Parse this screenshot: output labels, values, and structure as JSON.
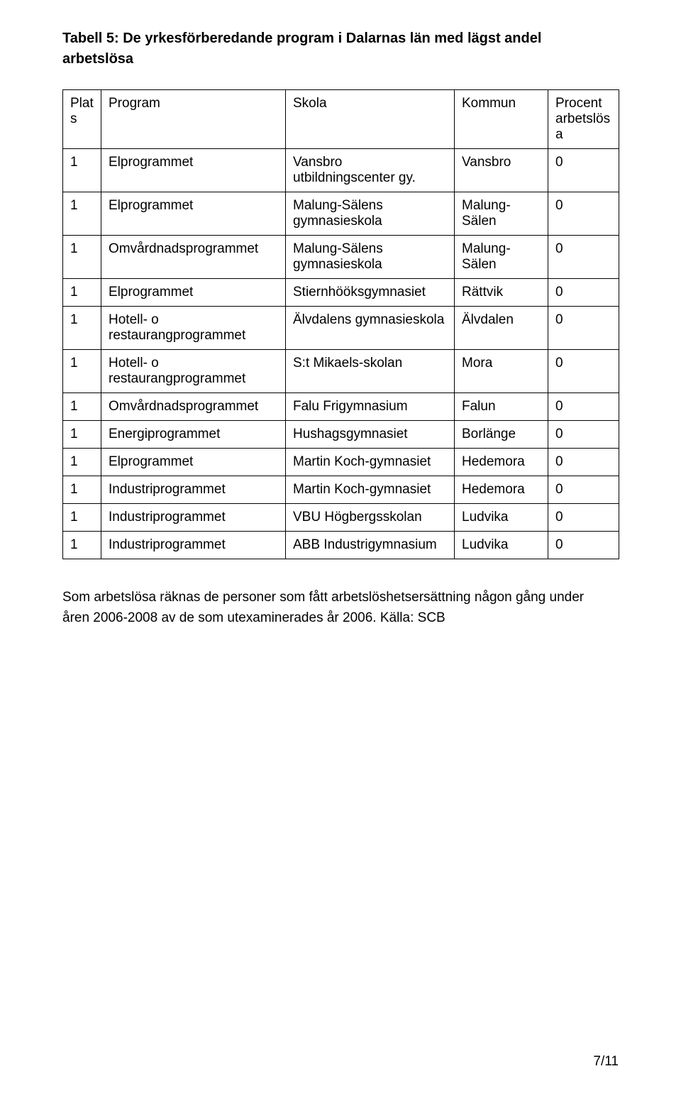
{
  "title_line1": "Tabell 5: De yrkesförberedande program i Dalarnas län med lägst andel",
  "title_line2": "arbetslösa",
  "columns": {
    "plats": "Plats",
    "program": "Program",
    "skola": "Skola",
    "kommun": "Kommun",
    "procent": "Procent arbetslösa"
  },
  "rows": [
    {
      "plats": "1",
      "program": "Elprogrammet",
      "skola": "Vansbro utbildningscenter gy.",
      "kommun": "Vansbro",
      "procent": "0"
    },
    {
      "plats": "1",
      "program": "Elprogrammet",
      "skola": "Malung-Sälens gymnasieskola",
      "kommun": "Malung-Sälen",
      "procent": "0"
    },
    {
      "plats": "1",
      "program": "Omvårdnadsprogrammet",
      "skola": "Malung-Sälens gymnasieskola",
      "kommun": "Malung-Sälen",
      "procent": "0"
    },
    {
      "plats": "1",
      "program": "Elprogrammet",
      "skola": "Stiernhööksgymnasiet",
      "kommun": "Rättvik",
      "procent": "0"
    },
    {
      "plats": "1",
      "program": "Hotell- o restaurangprogrammet",
      "skola": "Älvdalens gymnasieskola",
      "kommun": "Älvdalen",
      "procent": "0"
    },
    {
      "plats": "1",
      "program": "Hotell- o restaurangprogrammet",
      "skola": "S:t Mikaels-skolan",
      "kommun": "Mora",
      "procent": "0"
    },
    {
      "plats": "1",
      "program": "Omvårdnadsprogrammet",
      "skola": "Falu Frigymnasium",
      "kommun": "Falun",
      "procent": "0"
    },
    {
      "plats": "1",
      "program": "Energiprogrammet",
      "skola": "Hushagsgymnasiet",
      "kommun": "Borlänge",
      "procent": "0"
    },
    {
      "plats": "1",
      "program": "Elprogrammet",
      "skola": "Martin Koch-gymnasiet",
      "kommun": "Hedemora",
      "procent": "0"
    },
    {
      "plats": "1",
      "program": "Industriprogrammet",
      "skola": "Martin Koch-gymnasiet",
      "kommun": "Hedemora",
      "procent": "0"
    },
    {
      "plats": "1",
      "program": "Industriprogrammet",
      "skola": "VBU Högbergsskolan",
      "kommun": "Ludvika",
      "procent": "0"
    },
    {
      "plats": "1",
      "program": "Industriprogrammet",
      "skola": "ABB Industrigymnasium",
      "kommun": "Ludvika",
      "procent": "0"
    }
  ],
  "caption_line1": "Som arbetslösa räknas de personer som fått arbetslöshetsersättning någon gång under",
  "caption_line2": "åren 2006-2008 av de som utexaminerades år 2006. Källa: SCB",
  "page_number": "7/11"
}
